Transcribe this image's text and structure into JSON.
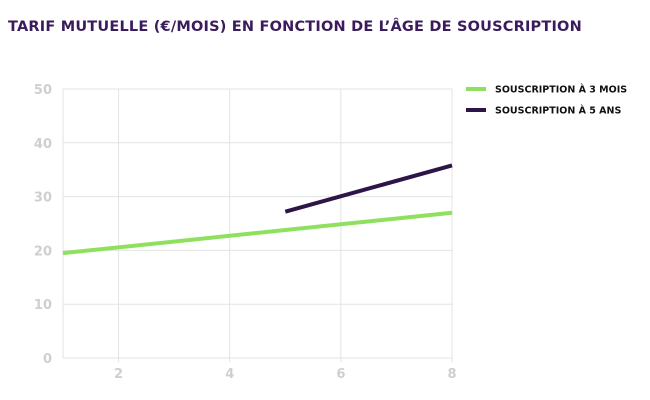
{
  "chart_data": {
    "type": "line",
    "title": "TARIF MUTUELLE (€/MOIS) EN FONCTION DE L’ÂGE DE SOUSCRIPTION",
    "xlabel": "",
    "ylabel": "",
    "xlim": [
      1,
      8
    ],
    "ylim": [
      0,
      50
    ],
    "x_ticks": [
      2,
      4,
      6,
      8
    ],
    "y_ticks": [
      0,
      10,
      20,
      30,
      40,
      50
    ],
    "grid": true,
    "legend_position": "top-right",
    "series": [
      {
        "name": "SOUSCRIPTION À 3 MOIS",
        "color": "#8ee05e",
        "x": [
          1,
          8
        ],
        "values": [
          19.5,
          27
        ]
      },
      {
        "name": "SOUSCRIPTION À 5 ANS",
        "color": "#2e1548",
        "x": [
          5,
          8
        ],
        "values": [
          27.2,
          35.8
        ]
      }
    ]
  },
  "colors": {
    "title": "#3a1b5c",
    "grid": "#e3e3e3",
    "tick_label": "#cfcfcf"
  }
}
